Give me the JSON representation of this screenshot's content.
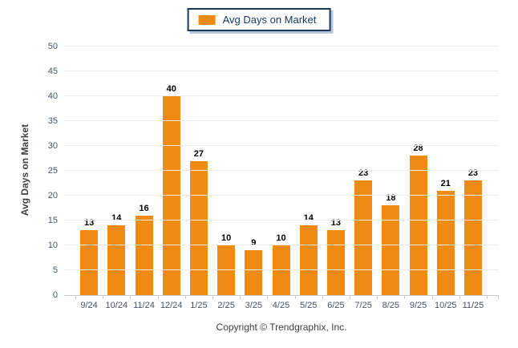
{
  "legend": {
    "label": "Avg Days on Market"
  },
  "footer": {
    "copyright": "Copyright © Trendgraphix, Inc."
  },
  "colors": {
    "bar": "#EF8B13",
    "legend_border": "#17375E",
    "legend_text": "#17375E",
    "gridline": "#ECECEC",
    "axis_line": "#C9C9C9",
    "axis_label": "#44546A",
    "value_label": "#000000"
  },
  "chart_data": {
    "type": "bar",
    "title": "",
    "categories": [
      "9/24",
      "10/24",
      "11/24",
      "12/24",
      "1/25",
      "2/25",
      "3/25",
      "4/25",
      "5/25",
      "6/25",
      "7/25",
      "8/25",
      "9/25",
      "10/25",
      "11/25"
    ],
    "values": [
      13,
      14,
      16,
      40,
      27,
      10,
      9,
      10,
      14,
      13,
      23,
      18,
      28,
      21,
      23
    ],
    "xlabel": "",
    "ylabel": "Avg Days on Market",
    "ylim": [
      0,
      50
    ],
    "ytick_step": 5,
    "grid": true,
    "data_labels": true,
    "legend_entries": [
      "Avg Days on Market"
    ],
    "legend_position": "top-center"
  }
}
